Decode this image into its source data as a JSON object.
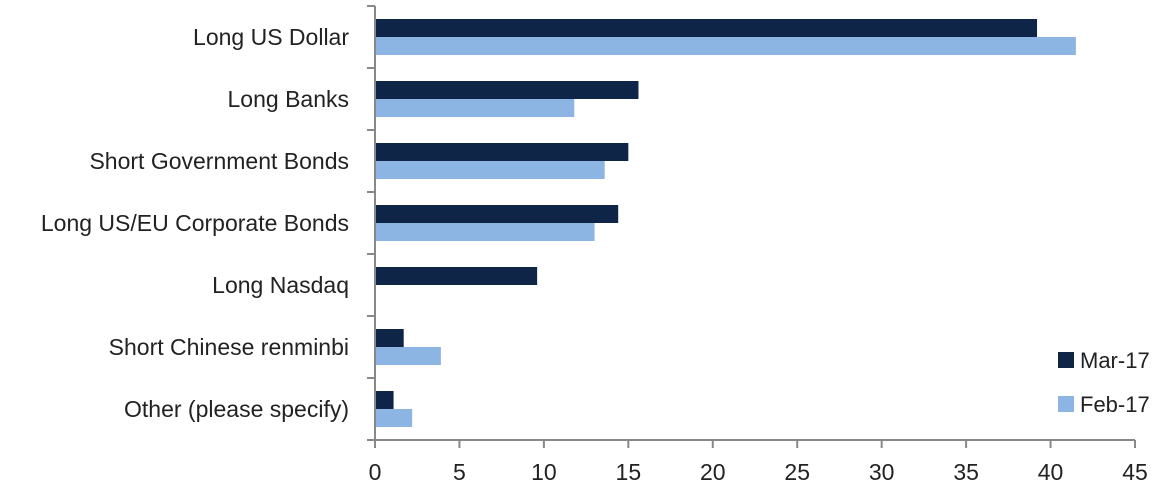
{
  "chart_data": {
    "type": "bar",
    "orientation": "horizontal",
    "categories": [
      "Long US Dollar",
      "Long Banks",
      "Short Government Bonds",
      "Long US/EU Corporate Bonds",
      "Long Nasdaq",
      "Short Chinese renminbi",
      "Other (please specify)"
    ],
    "series": [
      {
        "name": "Mar-17",
        "color": "#0f2547",
        "values": [
          39.2,
          15.6,
          15.0,
          14.4,
          9.6,
          1.7,
          1.1
        ]
      },
      {
        "name": "Feb-17",
        "color": "#8db5e3",
        "values": [
          41.5,
          11.8,
          13.6,
          13.0,
          0,
          3.9,
          2.2
        ]
      }
    ],
    "xlim": [
      0,
      45
    ],
    "xticks": [
      0,
      5,
      10,
      15,
      20,
      25,
      30,
      35,
      40,
      45
    ],
    "title": "",
    "xlabel": "",
    "ylabel": "",
    "grid": false,
    "legend_position": "bottom-right"
  }
}
